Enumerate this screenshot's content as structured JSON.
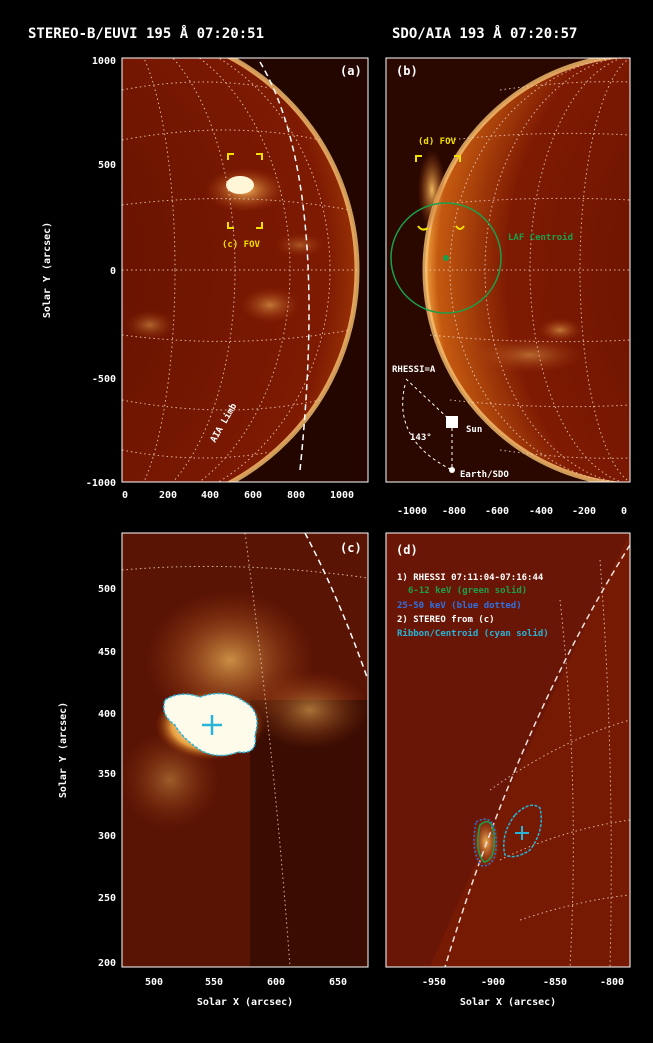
{
  "panels": {
    "a": {
      "title": "STEREO-B/EUVI 195 Å 07:20:51",
      "tag": "(a)",
      "fov_label": "(c) FOV",
      "limb_label": "AIA Limb",
      "x_ticks": [
        "0",
        "200",
        "400",
        "600",
        "800",
        "1000"
      ],
      "y_ticks": [
        "1000",
        "500",
        "0",
        "-500",
        "-1000"
      ],
      "y_label": "Solar Y (arcsec)"
    },
    "b": {
      "title": "SDO/AIA 193 Å 07:20:57",
      "tag": "(b)",
      "fov_label": "(d) FOV",
      "centroid_label": "LAF Centroid",
      "rhessi_label": "RHESSI=A",
      "angle_label": "143°",
      "sun_label": "Sun",
      "earth_label": "Earth/SDO",
      "x_ticks": [
        "-1000",
        "-800",
        "-600",
        "-400",
        "-200",
        "0"
      ]
    },
    "c": {
      "tag": "(c)",
      "x_ticks": [
        "500",
        "550",
        "600",
        "650"
      ],
      "y_ticks": [
        "500",
        "450",
        "400",
        "350",
        "300",
        "250",
        "200"
      ],
      "x_label": "Solar X (arcsec)",
      "y_label": "Solar Y (arcsec)"
    },
    "d": {
      "tag": "(d)",
      "legend": [
        "1) RHESSI 07:11:04-07:16:44",
        "6-12 keV (green solid)",
        "25-50 keV (blue dotted)",
        "2) STEREO from (c)",
        "Ribbon/Centroid (cyan solid)"
      ],
      "x_ticks": [
        "-950",
        "-900",
        "-850",
        "-800"
      ],
      "x_label": "Solar X (arcsec)"
    }
  },
  "colors": {
    "background": "#000000",
    "sun_disk": "#8a1e00",
    "limb_glow": "#f0a040",
    "fov_yellow": "#f2e000",
    "centroid_green": "#1aa04a",
    "contour_cyan": "#28b4d8",
    "legend_blue": "#3070e0",
    "grid": "#f0d0c0"
  }
}
